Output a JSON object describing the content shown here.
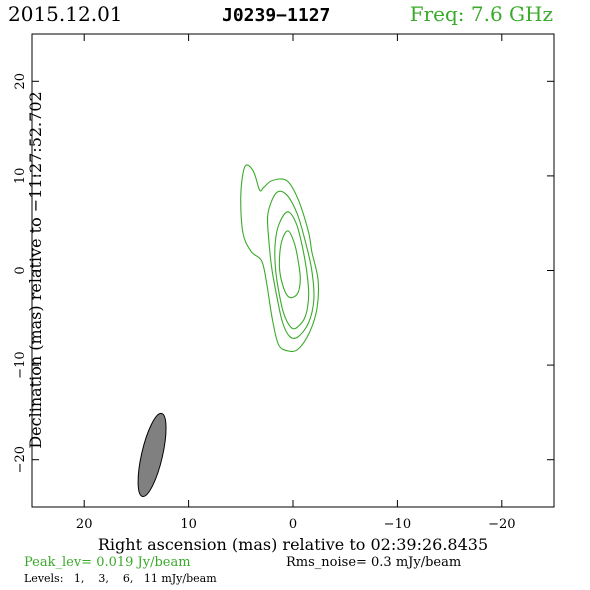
{
  "header": {
    "date": "2015.12.01",
    "source": "J0239−1127",
    "freq": "Freq: 7.6 GHz"
  },
  "colors": {
    "contour": "#3aaa2a",
    "beam_fill": "#808080",
    "axes": "#000000",
    "green_text": "#3aaa2a"
  },
  "footer": {
    "peak": "Peak_lev=  0.019 Jy/beam",
    "rms": "Rms_noise=   0.3 mJy/beam",
    "levels": "Levels:   1,    3,    6,   11 mJy/beam"
  },
  "chart_data": {
    "type": "contour",
    "xlabel": "Right ascension (mas) relative to 02:39:26.8435",
    "ylabel": "Declination (mas) relative to −11:27:52.702",
    "xlim": [
      25,
      -25
    ],
    "ylim": [
      -25,
      25
    ],
    "xticks": [
      20,
      10,
      0,
      -10,
      -20
    ],
    "xtick_labels": [
      "20",
      "10",
      "0",
      "−10",
      "−20"
    ],
    "yticks": [
      20,
      10,
      0,
      -10,
      -20
    ],
    "ytick_labels": [
      "20",
      "10",
      "0",
      "−10",
      "−20"
    ],
    "contour_levels_mJy": [
      1,
      3,
      6,
      11
    ],
    "contours": [
      {
        "level": 1,
        "points": [
          [
            0.5,
            -8.5
          ],
          [
            1.4,
            -7.8
          ],
          [
            2,
            -5
          ],
          [
            2.5,
            -1.5
          ],
          [
            3,
            1
          ],
          [
            4,
            2
          ],
          [
            4.8,
            4
          ],
          [
            5,
            8
          ],
          [
            4.6,
            11
          ],
          [
            3.8,
            10.5
          ],
          [
            3.2,
            8.5
          ],
          [
            2.8,
            8.8
          ],
          [
            2,
            9.5
          ],
          [
            0.6,
            9.5
          ],
          [
            -0.5,
            7.5
          ],
          [
            -1.5,
            4
          ],
          [
            -1.8,
            2
          ],
          [
            -2.4,
            -1
          ],
          [
            -2.3,
            -4
          ],
          [
            -1.6,
            -6.5
          ],
          [
            -0.5,
            -8.3
          ]
        ]
      },
      {
        "level": 3,
        "points": [
          [
            0.3,
            -7
          ],
          [
            1,
            -5.5
          ],
          [
            1.5,
            -3
          ],
          [
            2,
            0
          ],
          [
            2.3,
            3
          ],
          [
            2.4,
            6
          ],
          [
            1.6,
            8.2
          ],
          [
            0.6,
            8
          ],
          [
            -0.4,
            6
          ],
          [
            -1.2,
            3
          ],
          [
            -1.8,
            0
          ],
          [
            -2,
            -3
          ],
          [
            -1.5,
            -5.5
          ],
          [
            -0.5,
            -7
          ]
        ]
      },
      {
        "level": 6,
        "points": [
          [
            0.2,
            -6
          ],
          [
            0.9,
            -4.5
          ],
          [
            1.4,
            -2
          ],
          [
            1.7,
            0.5
          ],
          [
            1.7,
            3
          ],
          [
            1.3,
            5
          ],
          [
            0.5,
            6.2
          ],
          [
            -0.3,
            5
          ],
          [
            -0.9,
            2.5
          ],
          [
            -1.3,
            0
          ],
          [
            -1.5,
            -2.5
          ],
          [
            -1.2,
            -4.8
          ],
          [
            -0.4,
            -6
          ]
        ]
      },
      {
        "level": 11,
        "points": [
          [
            0.4,
            -2.8
          ],
          [
            1,
            -1.5
          ],
          [
            1.3,
            0.5
          ],
          [
            1.1,
            3
          ],
          [
            0.5,
            4.2
          ],
          [
            -0.1,
            3
          ],
          [
            -0.5,
            1
          ],
          [
            -0.7,
            -1
          ],
          [
            -0.4,
            -2.5
          ]
        ]
      }
    ],
    "beam": {
      "center": [
        13.5,
        -19.5
      ],
      "major_mas": 9,
      "minor_mas": 2,
      "pa_deg": 13
    }
  }
}
